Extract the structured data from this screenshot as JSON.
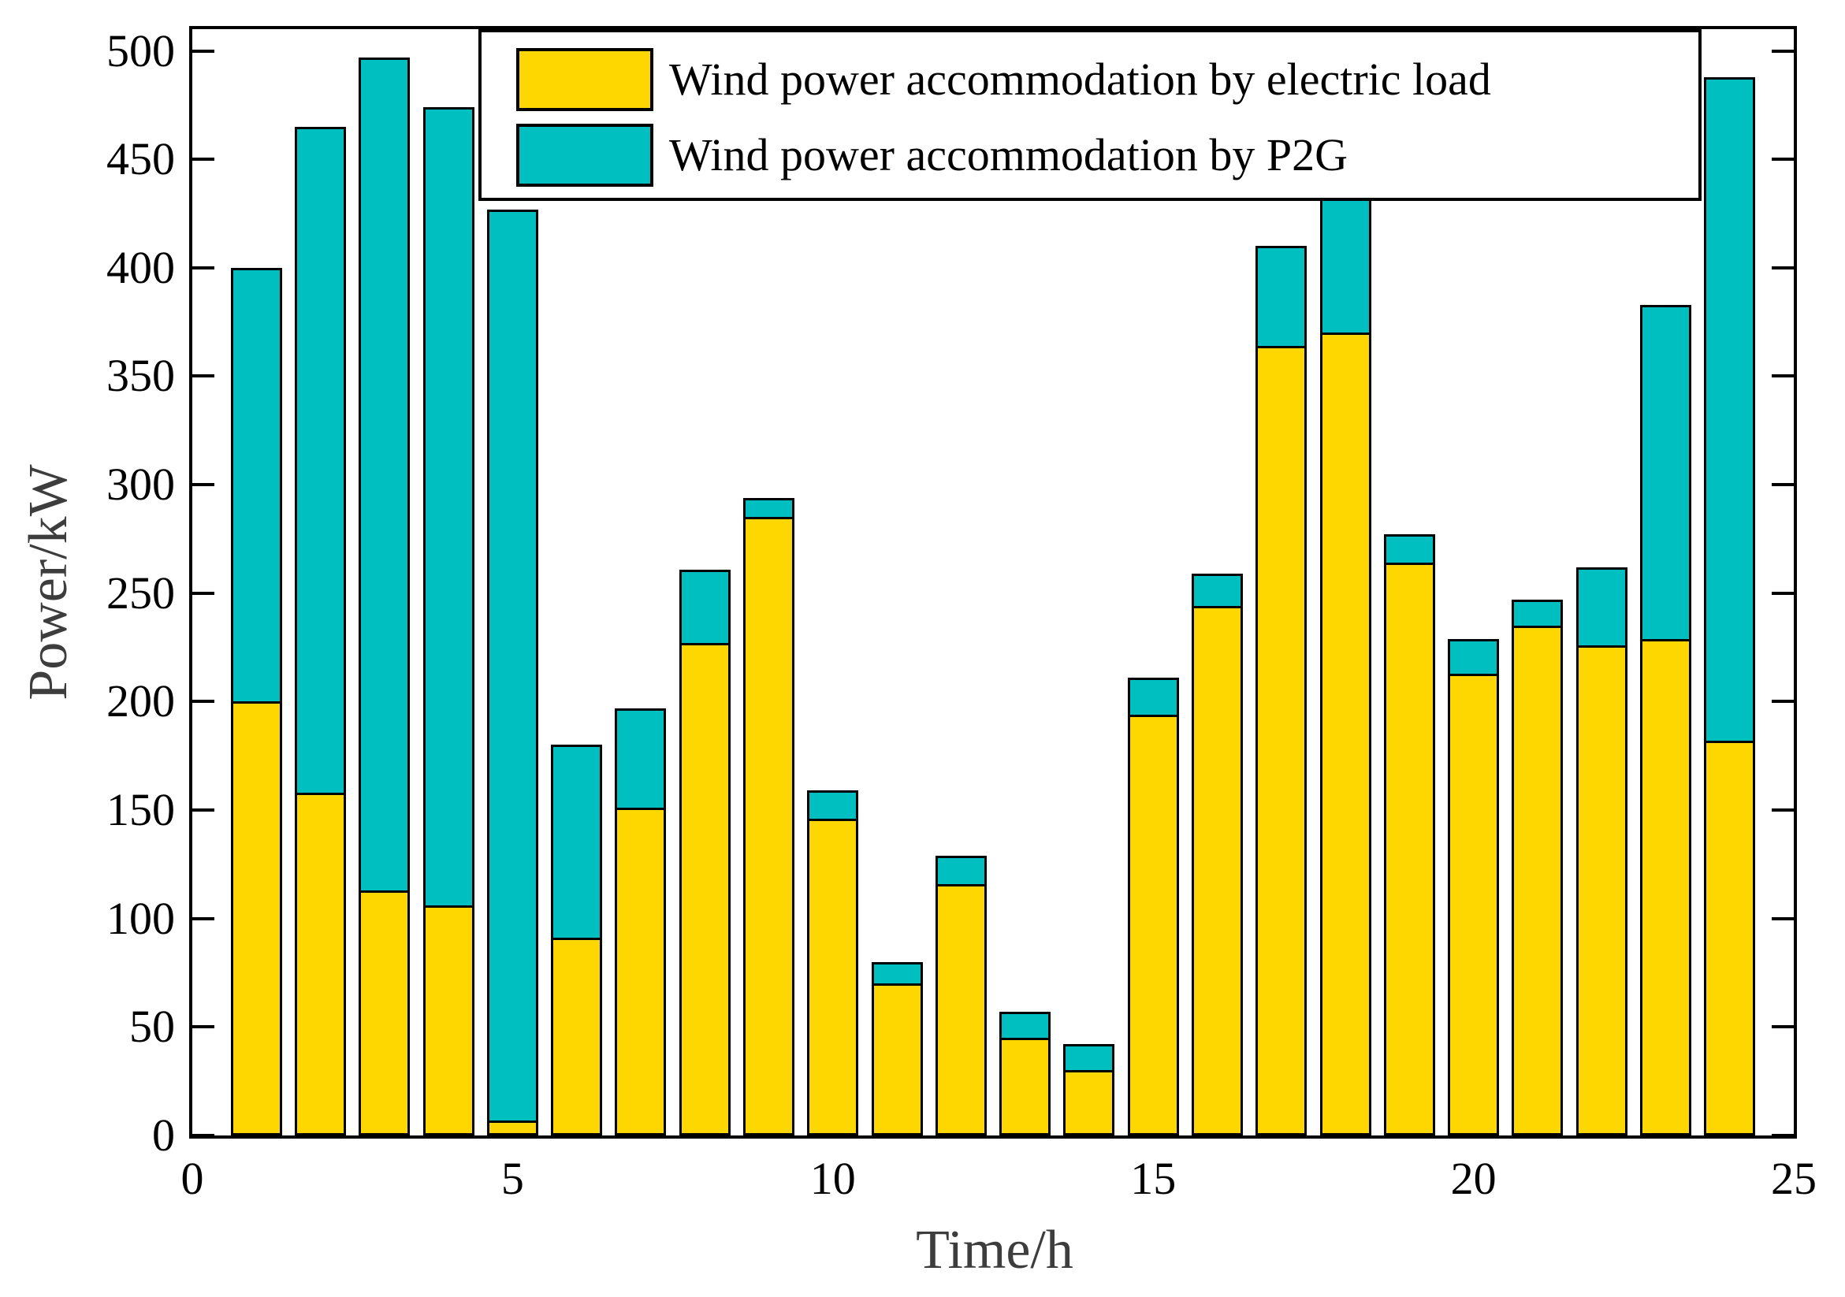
{
  "chart_data": {
    "type": "bar",
    "stacked": true,
    "title": "",
    "xlabel": "Time/h",
    "ylabel": "Power/kW",
    "xlim": [
      0,
      25
    ],
    "ylim": [
      0,
      500
    ],
    "xticks": [
      0,
      5,
      10,
      15,
      20,
      25
    ],
    "yticks": [
      0,
      50,
      100,
      150,
      200,
      250,
      300,
      350,
      400,
      450,
      500
    ],
    "grid": false,
    "legend_position": "top-inside",
    "bar_width_fraction": 0.8,
    "categories": [
      1,
      2,
      3,
      4,
      5,
      6,
      7,
      8,
      9,
      10,
      11,
      12,
      13,
      14,
      15,
      16,
      17,
      18,
      19,
      20,
      21,
      22,
      23,
      24
    ],
    "series": [
      {
        "name": "Wind power accommodation by electric load",
        "color": "#FFD700",
        "values": [
          200,
          158,
          113,
          106,
          7,
          91,
          151,
          227,
          285,
          146,
          70,
          116,
          45,
          30,
          194,
          244,
          364,
          370,
          264,
          213,
          235,
          226,
          229,
          182
        ]
      },
      {
        "name": "Wind power accommodation by P2G",
        "color": "#00BFC0",
        "values": [
          200,
          307,
          384,
          368,
          420,
          89,
          46,
          34,
          9,
          13,
          10,
          13,
          12,
          12,
          17,
          15,
          46,
          62,
          13,
          16,
          12,
          36,
          154,
          306
        ]
      }
    ],
    "stack_totals": [
      400,
      465,
      497,
      474,
      427,
      180,
      197,
      261,
      294,
      159,
      80,
      129,
      57,
      42,
      211,
      259,
      410,
      432,
      277,
      229,
      247,
      262,
      383,
      488
    ]
  },
  "colors": {
    "electric_load": "#FFD700",
    "p2g": "#00BFC0",
    "bar_edge": "#000000",
    "frame": "#000000",
    "tick_label": "#000000",
    "axis_label": "#3d3d3d",
    "background": "#FFFFFF"
  }
}
